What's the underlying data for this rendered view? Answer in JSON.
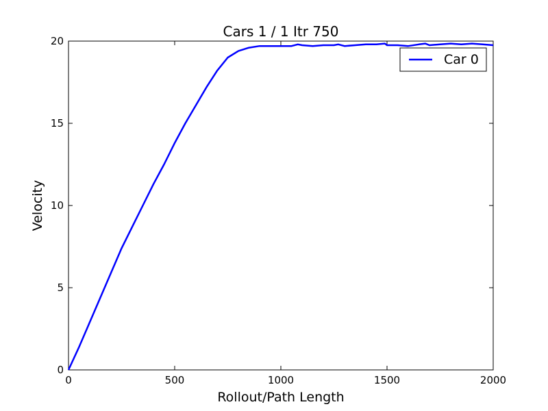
{
  "chart_data": {
    "type": "line",
    "title": "Cars 1 / 1 Itr 750",
    "xlabel": "Rollout/Path Length",
    "ylabel": "Velocity",
    "xlim": [
      0,
      2000
    ],
    "ylim": [
      0,
      20
    ],
    "xticks": [
      0,
      500,
      1000,
      1500,
      2000
    ],
    "yticks": [
      0,
      5,
      10,
      15,
      20
    ],
    "xtick_labels": [
      "0",
      "500",
      "1000",
      "1500",
      "2000"
    ],
    "ytick_labels": [
      "0",
      "5",
      "10",
      "15",
      "20"
    ],
    "grid": false,
    "legend_position": "top-right",
    "series": [
      {
        "name": "Car 0",
        "color": "#0000ff",
        "x": [
          0,
          50,
          100,
          150,
          200,
          250,
          300,
          350,
          400,
          450,
          500,
          550,
          600,
          650,
          700,
          750,
          800,
          850,
          900,
          950,
          1000,
          1050,
          1080,
          1100,
          1150,
          1200,
          1250,
          1270,
          1300,
          1350,
          1400,
          1450,
          1490,
          1500,
          1550,
          1600,
          1650,
          1680,
          1700,
          1750,
          1800,
          1850,
          1900,
          1950,
          2000
        ],
        "y": [
          0,
          1.4,
          2.9,
          4.4,
          5.9,
          7.4,
          8.7,
          10.0,
          11.3,
          12.5,
          13.8,
          15.0,
          16.1,
          17.2,
          18.2,
          19.0,
          19.4,
          19.6,
          19.7,
          19.7,
          19.7,
          19.7,
          19.8,
          19.75,
          19.7,
          19.75,
          19.75,
          19.8,
          19.7,
          19.75,
          19.8,
          19.8,
          19.85,
          19.75,
          19.75,
          19.7,
          19.8,
          19.85,
          19.75,
          19.8,
          19.85,
          19.8,
          19.85,
          19.8,
          19.75
        ]
      }
    ]
  }
}
